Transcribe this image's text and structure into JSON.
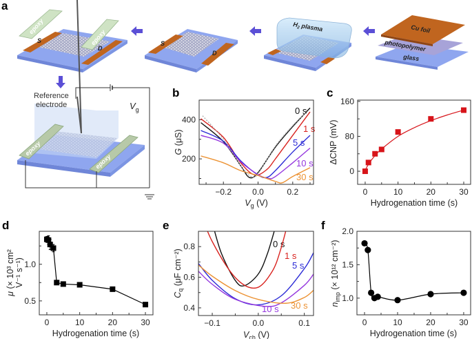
{
  "panel_a": {
    "letter": "a",
    "source_label": "S",
    "drain_label": "D",
    "epoxy_label": "epoxy",
    "plasma_label_main": "H",
    "plasma_label_sub": "2",
    "plasma_label_rest": " plasma",
    "cu_foil_label": "Cu foil",
    "photopolymer_label": "photopolymer",
    "glass_label": "glass",
    "reference_label_line1": "Reference",
    "reference_label_line2": "electrode",
    "vg_label": "V",
    "vg_sub": "g",
    "colors": {
      "substrate": "#8fa6ef",
      "electrode": "#c0651f",
      "arrow": "#5b4fd6",
      "epoxy": "#cfe3c4"
    }
  },
  "chart_data": [
    {
      "id": "b",
      "letter": "b",
      "type": "line",
      "ylabel_var": "G",
      "ylabel_unit": " (μS)",
      "xlabel_var": "V",
      "xlabel_sub": "g",
      "xlabel_unit": " (V)",
      "xlim": [
        -0.34,
        0.32
      ],
      "ylim": [
        70,
        500
      ],
      "xticks": [
        -0.2,
        0.0,
        0.2
      ],
      "xtick_labels": [
        "−0.2",
        "0.0",
        "0.2"
      ],
      "xticks_minor": [
        -0.3,
        -0.1,
        0.1,
        0.3
      ],
      "yticks": [
        200,
        400
      ],
      "ytick_labels": [
        "200",
        "400"
      ],
      "yticks_minor": [
        100,
        300
      ],
      "series": [
        {
          "name": "0 s",
          "color": "#111111",
          "points": [
            [
              -0.33,
              385
            ],
            [
              -0.2,
              288
            ],
            [
              -0.1,
              165
            ],
            [
              -0.05,
              105
            ],
            [
              0,
              130
            ],
            [
              0.1,
              260
            ],
            [
              0.2,
              365
            ],
            [
              0.3,
              460
            ]
          ]
        },
        {
          "name": "1 s",
          "color": "#d9231f",
          "points": [
            [
              -0.33,
              405
            ],
            [
              -0.2,
              310
            ],
            [
              -0.1,
              180
            ],
            [
              -0.02,
              118
            ],
            [
              0.05,
              145
            ],
            [
              0.1,
              200
            ],
            [
              0.2,
              320
            ],
            [
              0.3,
              440
            ]
          ]
        },
        {
          "name": "5 s",
          "color": "#2b2bd6",
          "points": [
            [
              -0.33,
              345
            ],
            [
              -0.2,
              290
            ],
            [
              -0.1,
              190
            ],
            [
              0,
              118
            ],
            [
              0.05,
              105
            ],
            [
              0.1,
              140
            ],
            [
              0.2,
              235
            ],
            [
              0.3,
              320
            ]
          ]
        },
        {
          "name": "10 s",
          "color": "#9436de",
          "points": [
            [
              -0.33,
              320
            ],
            [
              -0.2,
              280
            ],
            [
              -0.1,
              185
            ],
            [
              0,
              120
            ],
            [
              0.06,
              100
            ],
            [
              0.1,
              110
            ],
            [
              0.2,
              180
            ],
            [
              0.3,
              255
            ]
          ]
        },
        {
          "name": "30 s",
          "color": "#ec9233",
          "points": [
            [
              -0.33,
              215
            ],
            [
              -0.2,
              180
            ],
            [
              -0.1,
              140
            ],
            [
              0,
              115
            ],
            [
              0.1,
              85
            ],
            [
              0.14,
              78
            ],
            [
              0.2,
              110
            ],
            [
              0.3,
              155
            ]
          ]
        },
        {
          "name": "",
          "color": "#aaaaaa",
          "dashed": true,
          "points": [
            [
              -0.32,
              420
            ],
            [
              -0.2,
              300
            ],
            [
              -0.1,
              165
            ],
            [
              -0.04,
              110
            ],
            [
              0,
              125
            ],
            [
              0.1,
              265
            ],
            [
              0.2,
              370
            ],
            [
              0.28,
              440
            ]
          ]
        }
      ]
    },
    {
      "id": "c",
      "letter": "c",
      "type": "scatter",
      "ylabel_var": "",
      "ylabel_unit": "ΔCNP (mV)",
      "xlabel_var": "",
      "xlabel_sub": "",
      "xlabel_unit": "Hydrogenation time (s)",
      "xlim": [
        -2.3,
        32.1
      ],
      "ylim": [
        -30,
        163
      ],
      "xticks": [
        0,
        10,
        20,
        30
      ],
      "xtick_labels": [
        "0",
        "10",
        "20",
        "30"
      ],
      "xticks_minor": [
        5,
        15,
        25
      ],
      "yticks": [
        0,
        80,
        160
      ],
      "ytick_labels": [
        "0",
        "80",
        "160"
      ],
      "yticks_minor": [
        40,
        120
      ],
      "series": [
        {
          "name": "ΔCNP",
          "color": "#d7141a",
          "marker": "square",
          "line": "fit",
          "x": [
            0,
            1,
            3,
            5,
            10,
            20,
            30
          ],
          "y": [
            0,
            20,
            40,
            50,
            90,
            120,
            140
          ],
          "fit": [
            [
              0,
              2
            ],
            [
              1,
              16
            ],
            [
              3,
              36
            ],
            [
              5,
              51
            ],
            [
              10,
              80
            ],
            [
              15,
              100
            ],
            [
              20,
              116
            ],
            [
              25,
              129
            ],
            [
              30,
              140
            ]
          ]
        }
      ]
    },
    {
      "id": "d",
      "letter": "d",
      "type": "scatter",
      "ylabel_var": "μ",
      "ylabel_unit": " (× 10³ cm²",
      "ylabel_line2": "V⁻¹ s⁻¹)",
      "xlabel_var": "",
      "xlabel_sub": "",
      "xlabel_unit": "Hydrogenation time (s)",
      "xlim": [
        -2.3,
        32.3
      ],
      "ylim": [
        0.31,
        1.45
      ],
      "xticks": [
        0,
        10,
        20,
        30
      ],
      "xtick_labels": [
        "0",
        "10",
        "20",
        "30"
      ],
      "xticks_minor": [
        5,
        15,
        25
      ],
      "yticks": [
        0.5,
        1.0
      ],
      "ytick_labels": [
        "0.5",
        "1.0"
      ],
      "yticks_minor": [
        0.75,
        1.25
      ],
      "series": [
        {
          "name": "mobility",
          "color": "#000000",
          "marker": "square",
          "line": "connect",
          "x": [
            0,
            0.5,
            1,
            2,
            3,
            5,
            10,
            20,
            30
          ],
          "y": [
            1.34,
            1.33,
            1.27,
            1.22,
            0.75,
            0.73,
            0.72,
            0.66,
            0.45
          ],
          "err": [
            0.04,
            0.06,
            0.07,
            0.05,
            0.03,
            0,
            0,
            0,
            0
          ]
        }
      ]
    },
    {
      "id": "e",
      "letter": "e",
      "type": "line",
      "ylabel_var": "C",
      "ylabel_sub": "q",
      "ylabel_unit": " (μF cm⁻²)",
      "xlabel_var": "V",
      "xlabel_sub": "ch",
      "xlabel_unit": " (V)",
      "xlim": [
        -0.13,
        0.12
      ],
      "ylim": [
        0.35,
        0.9
      ],
      "xticks": [
        -0.1,
        0.0,
        0.1
      ],
      "xtick_labels": [
        "−0.1",
        "0.0",
        "0.1"
      ],
      "xticks_minor": [
        -0.05,
        0.05
      ],
      "yticks": [
        0.4,
        0.6,
        0.8
      ],
      "ytick_labels": [
        "0.4",
        "0.6",
        "0.8"
      ],
      "yticks_minor": [
        0.5,
        0.7
      ],
      "series": [
        {
          "name": "0 s",
          "color": "#111111",
          "points": [
            [
              -0.1,
              0.957
            ],
            [
              -0.08,
              0.755
            ],
            [
              -0.05,
              0.579
            ],
            [
              -0.03,
              0.545
            ],
            [
              0,
              0.621
            ],
            [
              0.02,
              0.755
            ],
            [
              0.04,
              0.957
            ]
          ]
        },
        {
          "name": "1 s",
          "color": "#d9231f",
          "points": [
            [
              -0.13,
              1.055
            ],
            [
              -0.1,
              0.833
            ],
            [
              -0.05,
              0.598
            ],
            [
              -0.005,
              0.53
            ],
            [
              0.03,
              0.637
            ],
            [
              0.05,
              0.795
            ],
            [
              0.07,
              1.025
            ]
          ]
        },
        {
          "name": "5 s",
          "color": "#2b2bd6",
          "points": [
            [
              -0.13,
              0.69
            ],
            [
              -0.1,
              0.58
            ],
            [
              -0.05,
              0.46
            ],
            [
              0,
              0.42
            ],
            [
              0.05,
              0.479
            ],
            [
              0.1,
              0.656
            ],
            [
              0.12,
              0.76
            ]
          ]
        },
        {
          "name": "10 s",
          "color": "#9436de",
          "points": [
            [
              -0.13,
              0.639
            ],
            [
              -0.1,
              0.554
            ],
            [
              -0.05,
              0.456
            ],
            [
              0.015,
              0.41
            ],
            [
              0.05,
              0.433
            ],
            [
              0.1,
              0.547
            ],
            [
              0.12,
              0.62
            ]
          ]
        },
        {
          "name": "30 s",
          "color": "#ec9233",
          "points": [
            [
              -0.13,
              0.68
            ],
            [
              -0.1,
              0.607
            ],
            [
              -0.05,
              0.513
            ],
            [
              0,
              0.455
            ],
            [
              0.06,
              0.43
            ],
            [
              0.1,
              0.468
            ],
            [
              0.12,
              0.515
            ]
          ]
        }
      ]
    },
    {
      "id": "f",
      "letter": "f",
      "type": "scatter",
      "ylabel_var": "n",
      "ylabel_sub": "imp",
      "ylabel_unit": " (× 10¹² cm⁻²)",
      "xlabel_var": "",
      "xlabel_sub": "",
      "xlabel_unit": "Hydrogenation time (s)",
      "xlim": [
        -2.3,
        32.1
      ],
      "ylim": [
        0.75,
        2.0
      ],
      "xticks": [
        0,
        10,
        20,
        30
      ],
      "xtick_labels": [
        "0",
        "10",
        "20",
        "30"
      ],
      "xticks_minor": [
        5,
        15,
        25
      ],
      "yticks": [
        1.0,
        1.5,
        2.0
      ],
      "ytick_labels": [
        "1.0",
        "1.5",
        "2.0"
      ],
      "yticks_minor": [
        1.25,
        1.75
      ],
      "series": [
        {
          "name": "n_imp",
          "color": "#000000",
          "marker": "circle",
          "line": "smooth",
          "x": [
            0,
            1,
            2,
            3,
            4,
            10,
            20,
            30
          ],
          "y": [
            1.82,
            1.72,
            1.08,
            1.0,
            1.02,
            0.97,
            1.06,
            1.08
          ]
        }
      ]
    }
  ]
}
